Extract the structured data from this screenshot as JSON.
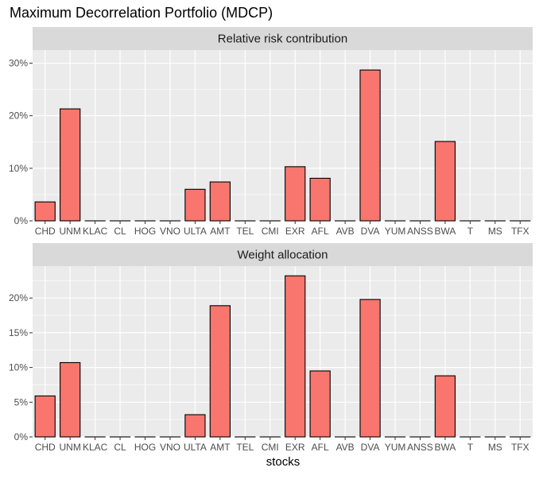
{
  "chart_data": {
    "type": "bar",
    "title": "Maximum Decorrelation Portfolio (MDCP)",
    "xlabel": "stocks",
    "ylabel": "",
    "categories": [
      "CHD",
      "UNM",
      "KLAC",
      "CL",
      "HOG",
      "VNO",
      "ULTA",
      "AMT",
      "TEL",
      "CMI",
      "EXR",
      "AFL",
      "AVB",
      "DVA",
      "YUM",
      "ANSS",
      "BWA",
      "T",
      "MS",
      "TFX"
    ],
    "fill_color": "#F8766D",
    "panel_background": "#EBEBEB",
    "strip_background": "#D9D9D9",
    "grid": true,
    "legend": "none",
    "panels": [
      {
        "label": "Relative risk contribution",
        "ylim": [
          0,
          32.5
        ],
        "yticks": [
          0,
          10,
          20,
          30
        ],
        "ytick_labels": [
          "0%",
          "10%",
          "20%",
          "30%"
        ],
        "values": [
          3.6,
          21.3,
          0,
          0,
          0,
          0,
          6.0,
          7.4,
          0,
          0,
          10.3,
          8.1,
          0,
          28.7,
          0,
          0,
          15.1,
          0,
          0,
          0
        ]
      },
      {
        "label": "Weight allocation",
        "ylim": [
          0,
          24.6
        ],
        "yticks": [
          0,
          5,
          10,
          15,
          20
        ],
        "ytick_labels": [
          "0%",
          "5%",
          "10%",
          "15%",
          "20%"
        ],
        "values": [
          5.9,
          10.7,
          0,
          0,
          0,
          0,
          3.2,
          18.9,
          0,
          0,
          23.2,
          9.5,
          0,
          19.8,
          0,
          0,
          8.8,
          0,
          0,
          0
        ]
      }
    ]
  }
}
